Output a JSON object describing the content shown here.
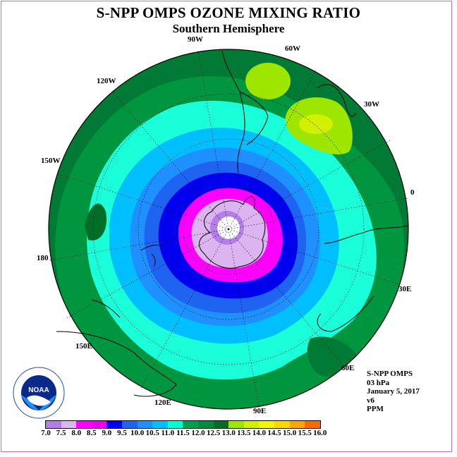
{
  "title": "S-NPP OMPS OZONE MIXING RATIO",
  "subtitle": "Southern Hemisphere",
  "longitude_labels": [
    "90W",
    "60W",
    "30W",
    "0",
    "30E",
    "60E",
    "90E",
    "120E",
    "150E",
    "180",
    "150W",
    "120W"
  ],
  "info": {
    "line1": "S-NPP OMPS",
    "line2": "03 hPa",
    "line3": "January 5, 2017",
    "line4": "v6",
    "line5": "PPM"
  },
  "logo": {
    "text": "NOAA",
    "ring_text": "NATIONAL OCEANIC AND ATMOSPHERIC ADMINISTRATION · U.S. DEPARTMENT OF COMMERCE"
  },
  "colorbar": {
    "labels": [
      "7.0",
      "7.5",
      "8.0",
      "8.5",
      "9.0",
      "9.5",
      "10.0",
      "10.5",
      "11.0",
      "11.5",
      "12.0",
      "12.5",
      "13.0",
      "13.5",
      "14.0",
      "14.5",
      "15.0",
      "15.5",
      "16.0"
    ],
    "colors": [
      "#b37ee8",
      "#dcb4f0",
      "#ff00ff",
      "#ee00ee",
      "#0000ee",
      "#1e64f0",
      "#1e90ff",
      "#00bfff",
      "#00ffd2",
      "#00a050",
      "#008c3c",
      "#006e28",
      "#9ee600",
      "#d2f000",
      "#f5f500",
      "#ffd700",
      "#ffa500",
      "#ff6a00",
      "#ff0000",
      "#9a5a3c"
    ]
  },
  "colors": {
    "ring_dark_green": "#007a35",
    "green": "#00953f",
    "aquamarine": "#1affd9",
    "sky_blue": "#00bfff",
    "dodger_blue": "#1e90ff",
    "royal_blue": "#1e64f0",
    "blue": "#0000ee",
    "magenta": "#ff00ff",
    "lavender": "#dcb4f0",
    "violet": "#b37ee8",
    "yellow_green": "#9ee600"
  }
}
